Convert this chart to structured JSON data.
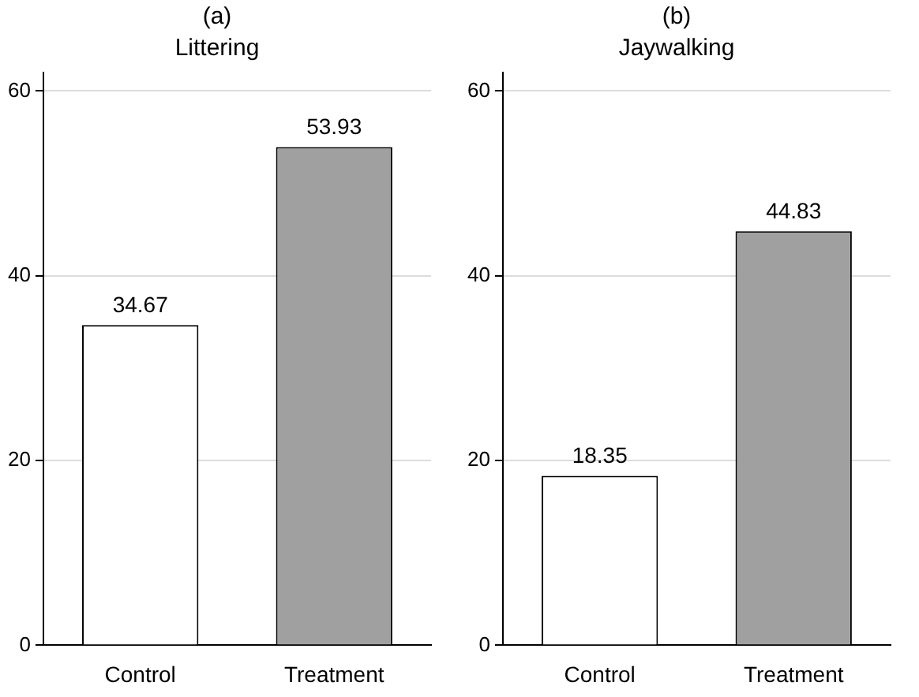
{
  "chart_data": [
    {
      "type": "bar",
      "title": "(a)",
      "subtitle": "Littering",
      "categories": [
        "Control",
        "Treatment"
      ],
      "values": [
        34.67,
        53.93
      ],
      "colors": [
        "#ffffff",
        "#a0a0a0"
      ],
      "ylim": [
        0,
        62
      ],
      "yticks": [
        0,
        20,
        40,
        60
      ],
      "grid": "y",
      "data_labels": true
    },
    {
      "type": "bar",
      "title": "(b)",
      "subtitle": "Jaywalking",
      "categories": [
        "Control",
        "Treatment"
      ],
      "values": [
        18.35,
        44.83
      ],
      "colors": [
        "#ffffff",
        "#a0a0a0"
      ],
      "ylim": [
        0,
        62
      ],
      "yticks": [
        0,
        20,
        40,
        60
      ],
      "grid": "y",
      "data_labels": true
    }
  ]
}
